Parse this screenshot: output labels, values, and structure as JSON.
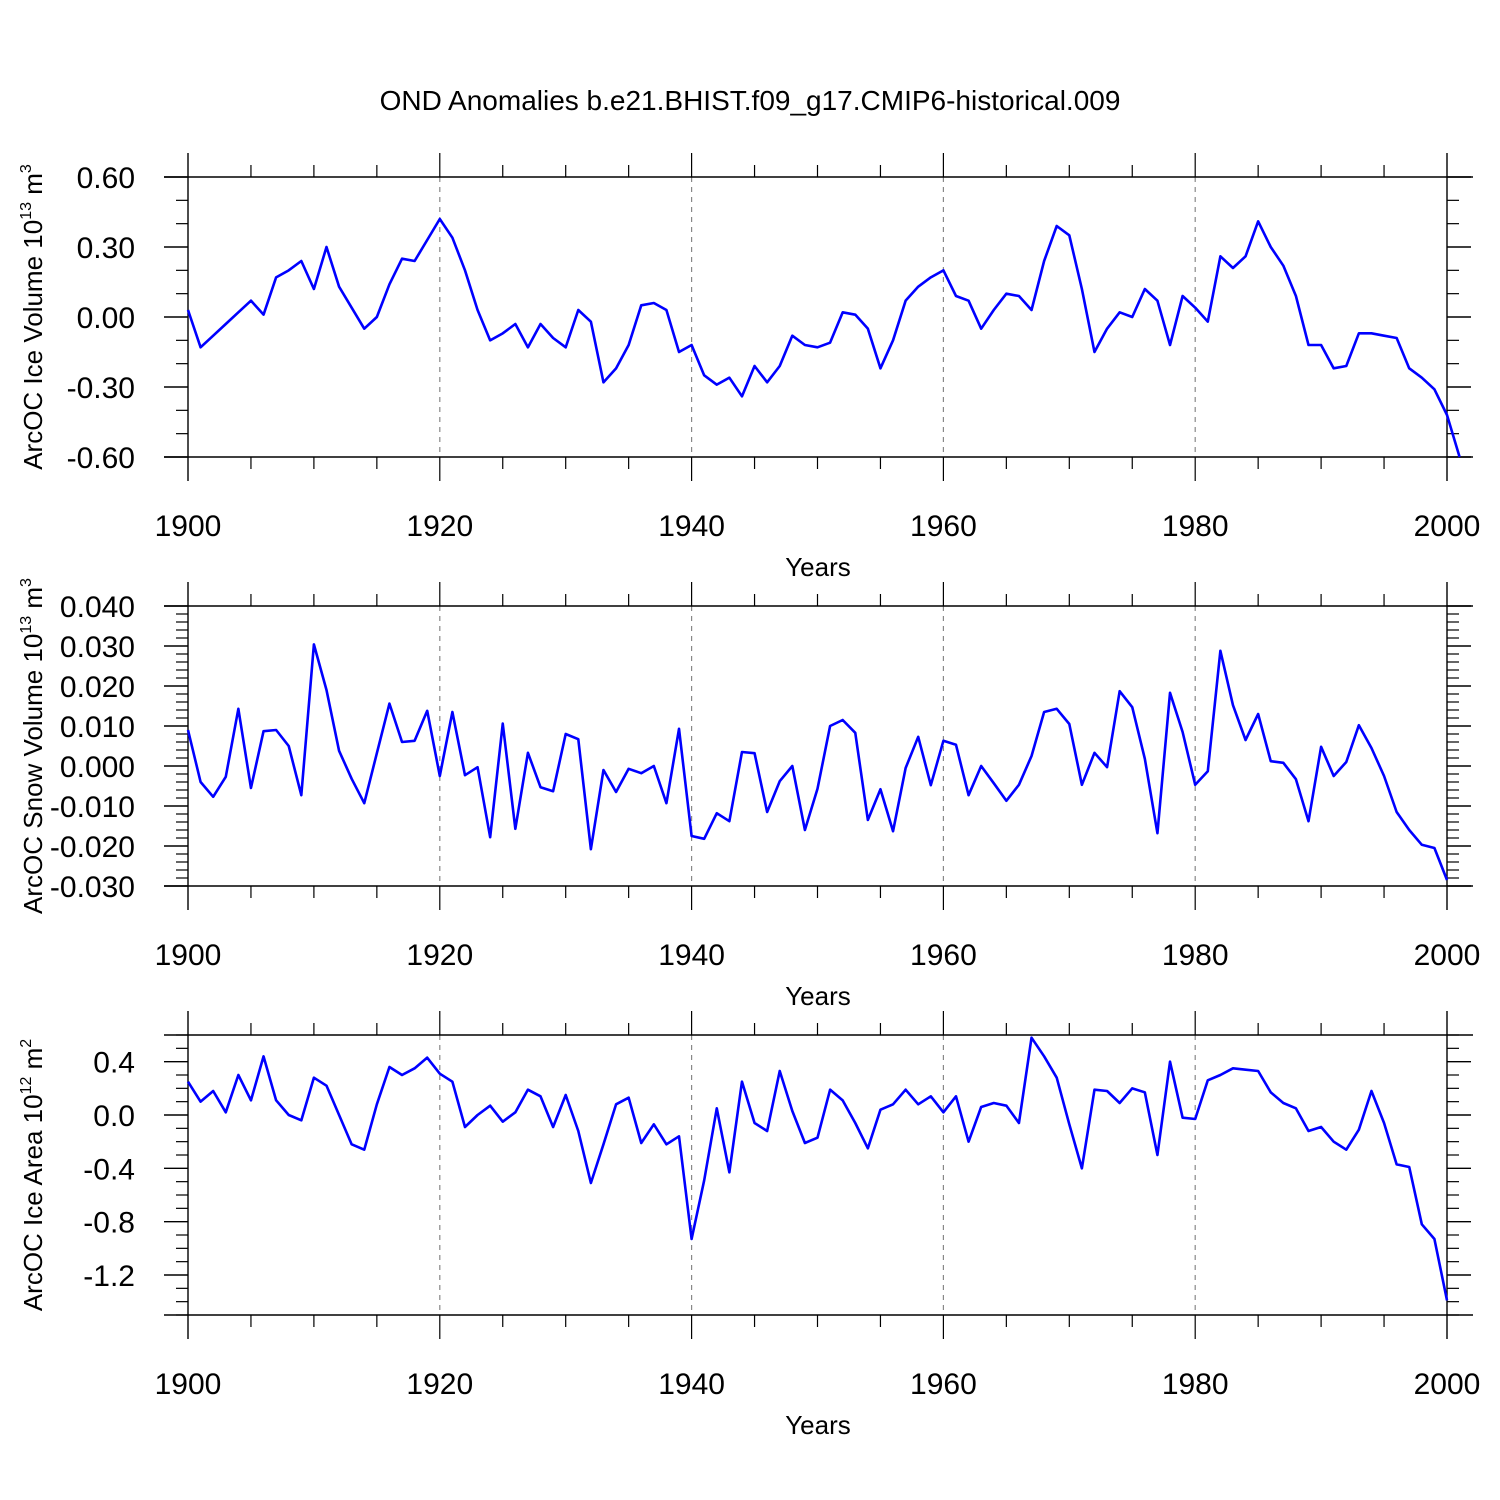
{
  "title": "OND Anomalies b.e21.BHIST.f09_g17.CMIP6-historical.009",
  "line_color": "#0000ff",
  "chart_data": [
    {
      "type": "line",
      "series_name": "ArcOC Ice Volume",
      "ylabel_main": "ArcOC Ice Volume 10",
      "ylabel_exp": "13",
      "ylabel_unit": "m",
      "ylabel_unit_exp": "3",
      "xlabel": "Years",
      "xlim": [
        1900,
        2000
      ],
      "ylim": [
        -0.6,
        0.6
      ],
      "xticks": [
        1900,
        1920,
        1940,
        1960,
        1980,
        2000
      ],
      "xtick_labels": [
        "1900",
        "1920",
        "1940",
        "1960",
        "1980",
        "2000"
      ],
      "yticks": [
        -0.6,
        -0.3,
        0.0,
        0.3,
        0.6
      ],
      "ytick_labels": [
        "-0.60",
        "-0.30",
        "0.00",
        "0.30",
        "0.60"
      ],
      "yminor_step": 0.1,
      "x_start": 1900,
      "values": [
        0.03,
        -0.13,
        -0.08,
        -0.03,
        0.02,
        0.07,
        0.01,
        0.17,
        0.2,
        0.24,
        0.12,
        0.3,
        0.13,
        0.04,
        -0.05,
        0.0,
        0.14,
        0.25,
        0.24,
        0.33,
        0.42,
        0.34,
        0.2,
        0.03,
        -0.1,
        -0.07,
        -0.03,
        -0.13,
        -0.03,
        -0.09,
        -0.13,
        0.03,
        -0.02,
        -0.28,
        -0.22,
        -0.12,
        0.05,
        0.06,
        0.03,
        -0.15,
        -0.12,
        -0.25,
        -0.29,
        -0.26,
        -0.34,
        -0.21,
        -0.28,
        -0.21,
        -0.08,
        -0.12,
        -0.13,
        -0.11,
        0.02,
        0.01,
        -0.05,
        -0.22,
        -0.1,
        0.07,
        0.13,
        0.17,
        0.2,
        0.09,
        0.07,
        -0.05,
        0.03,
        0.1,
        0.09,
        0.03,
        0.24,
        0.39,
        0.35,
        0.12,
        -0.15,
        -0.05,
        0.02,
        0.0,
        0.12,
        0.07,
        -0.12,
        0.09,
        0.04,
        -0.02,
        0.26,
        0.21,
        0.26,
        0.41,
        0.3,
        0.22,
        0.09,
        -0.12,
        -0.12,
        -0.22,
        -0.21,
        -0.07,
        -0.07,
        -0.08,
        -0.09,
        -0.22,
        -0.26,
        -0.31,
        -0.42,
        -0.6
      ]
    },
    {
      "type": "line",
      "series_name": "ArcOC Snow Volume",
      "ylabel_main": "ArcOC Snow Volume 10",
      "ylabel_exp": "13",
      "ylabel_unit": "m",
      "ylabel_unit_exp": "3",
      "xlabel": "Years",
      "xlim": [
        1900,
        2000
      ],
      "ylim": [
        -0.03,
        0.04
      ],
      "xticks": [
        1900,
        1920,
        1940,
        1960,
        1980,
        2000
      ],
      "xtick_labels": [
        "1900",
        "1920",
        "1940",
        "1960",
        "1980",
        "2000"
      ],
      "yticks": [
        -0.03,
        -0.02,
        -0.01,
        0.0,
        0.01,
        0.02,
        0.03,
        0.04
      ],
      "ytick_labels": [
        "-0.030",
        "-0.020",
        "-0.010",
        "0.000",
        "0.010",
        "0.020",
        "0.030",
        "0.040"
      ],
      "yminor_step": 0.002,
      "x_start": 1900,
      "values": [
        0.009,
        -0.004,
        -0.0077,
        -0.0027,
        0.0143,
        -0.0055,
        0.0087,
        0.009,
        0.005,
        -0.0073,
        0.0304,
        0.019,
        0.0038,
        -0.0032,
        -0.0093,
        0.0032,
        0.0156,
        0.006,
        0.0063,
        0.0138,
        -0.0025,
        0.0135,
        -0.0023,
        -0.0003,
        -0.0178,
        0.0106,
        -0.0157,
        0.0033,
        -0.0053,
        -0.0063,
        0.008,
        0.0067,
        -0.0208,
        -0.001,
        -0.0065,
        -0.0007,
        -0.0018,
        0.0,
        -0.0093,
        0.0093,
        -0.0175,
        -0.0182,
        -0.0118,
        -0.0138,
        0.0035,
        0.0032,
        -0.0115,
        -0.0038,
        0.0,
        -0.016,
        -0.0057,
        0.01,
        0.0115,
        0.0083,
        -0.0135,
        -0.0058,
        -0.0163,
        -0.0005,
        0.0073,
        -0.0048,
        0.0063,
        0.0053,
        -0.0073,
        0.0,
        -0.0043,
        -0.0087,
        -0.0047,
        0.0025,
        0.0135,
        0.0143,
        0.0105,
        -0.0047,
        0.0033,
        -0.0003,
        0.0187,
        0.0147,
        0.0018,
        -0.0168,
        0.0183,
        0.0085,
        -0.0047,
        -0.0013,
        0.0288,
        0.0152,
        0.0065,
        0.013,
        0.0012,
        0.0008,
        -0.0033,
        -0.0138,
        0.0048,
        -0.0025,
        0.001,
        0.0102,
        0.0045,
        -0.0025,
        -0.0115,
        -0.016,
        -0.0197,
        -0.0205,
        -0.0285
      ]
    },
    {
      "type": "line",
      "series_name": "ArcOC Ice Area",
      "ylabel_main": "ArcOC Ice Area 10",
      "ylabel_exp": "12",
      "ylabel_unit": "m",
      "ylabel_unit_exp": "2",
      "xlabel": "Years",
      "xlim": [
        1900,
        2000
      ],
      "ylim": [
        -1.5,
        0.6
      ],
      "xticks": [
        1900,
        1920,
        1940,
        1960,
        1980,
        2000
      ],
      "xtick_labels": [
        "1900",
        "1920",
        "1940",
        "1960",
        "1980",
        "2000"
      ],
      "yticks": [
        -1.2,
        -0.8,
        -0.4,
        0.0,
        0.4
      ],
      "ytick_labels": [
        "-1.2",
        "-0.8",
        "-0.4",
        "0.0",
        "0.4"
      ],
      "yminor_step": 0.1,
      "x_start": 1900,
      "values": [
        0.25,
        0.1,
        0.18,
        0.02,
        0.3,
        0.11,
        0.44,
        0.11,
        0.0,
        -0.04,
        0.28,
        0.22,
        0.0,
        -0.22,
        -0.26,
        0.08,
        0.36,
        0.3,
        0.35,
        0.43,
        0.31,
        0.25,
        -0.09,
        0.0,
        0.07,
        -0.05,
        0.02,
        0.19,
        0.14,
        -0.09,
        0.15,
        -0.12,
        -0.51,
        -0.22,
        0.08,
        0.13,
        -0.21,
        -0.07,
        -0.22,
        -0.16,
        -0.93,
        -0.49,
        0.05,
        -0.43,
        0.25,
        -0.06,
        -0.12,
        0.33,
        0.03,
        -0.21,
        -0.17,
        0.19,
        0.11,
        -0.06,
        -0.25,
        0.04,
        0.08,
        0.19,
        0.08,
        0.14,
        0.02,
        0.14,
        -0.2,
        0.06,
        0.09,
        0.07,
        -0.06,
        0.58,
        0.44,
        0.28,
        -0.07,
        -0.4,
        0.19,
        0.18,
        0.09,
        0.2,
        0.17,
        -0.3,
        0.4,
        -0.02,
        -0.03,
        0.26,
        0.3,
        0.35,
        0.34,
        0.33,
        0.17,
        0.09,
        0.05,
        -0.12,
        -0.09,
        -0.2,
        -0.26,
        -0.11,
        0.18,
        -0.06,
        -0.37,
        -0.39,
        -0.82,
        -0.93,
        -1.39
      ]
    }
  ]
}
